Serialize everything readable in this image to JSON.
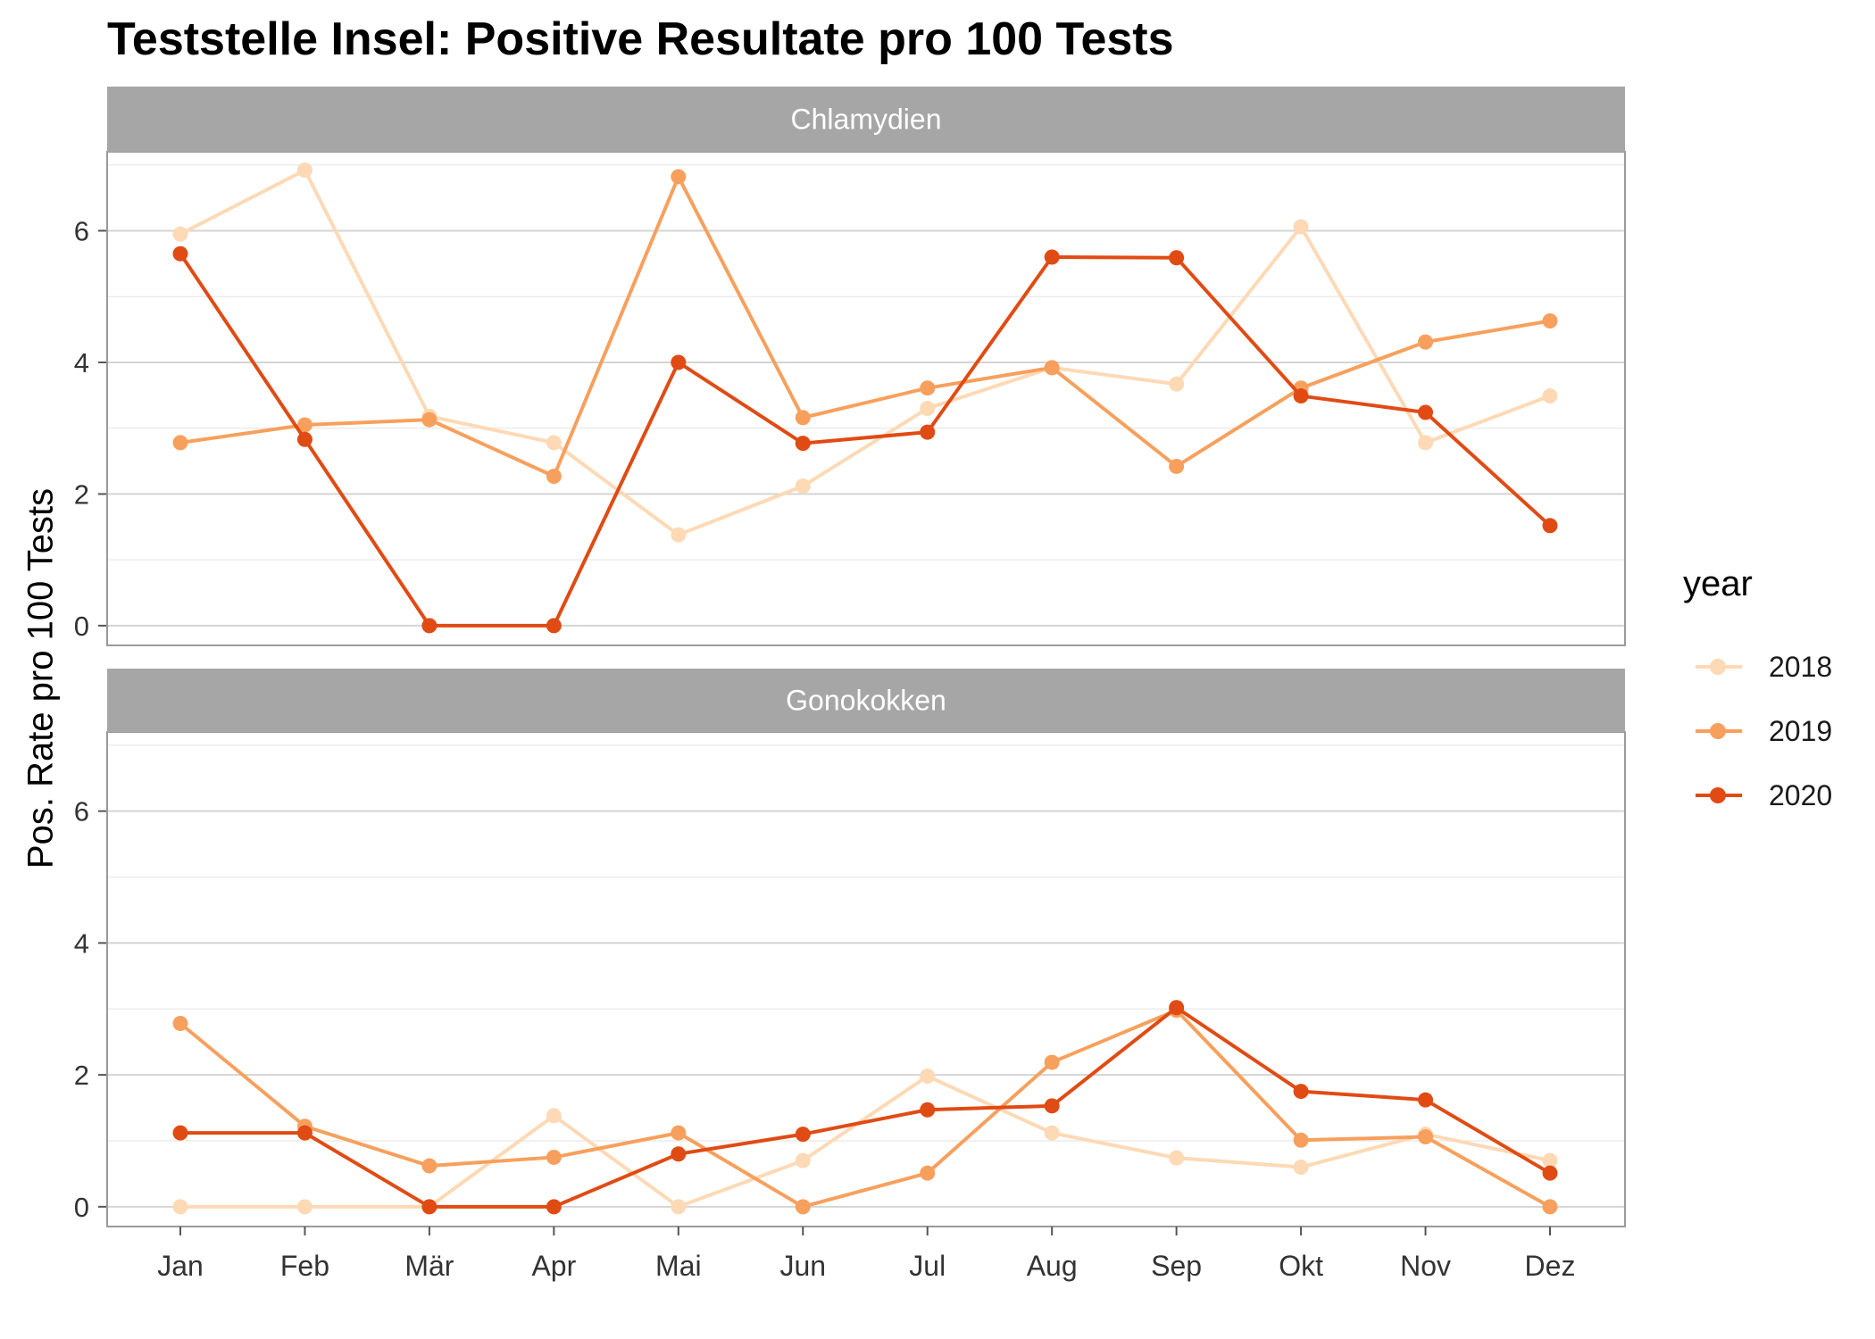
{
  "chart_data": {
    "type": "line",
    "title": "Teststelle Insel: Positive Resultate pro 100 Tests",
    "ylabel": "Pos. Rate pro 100 Tests",
    "xlabel": "",
    "categories": [
      "Jan",
      "Feb",
      "Mär",
      "Apr",
      "Mai",
      "Jun",
      "Jul",
      "Aug",
      "Sep",
      "Okt",
      "Nov",
      "Dez"
    ],
    "ylim": [
      -0.3,
      7.2
    ],
    "yticks": [
      0,
      2,
      4,
      6
    ],
    "grid": true,
    "legend": {
      "title": "year",
      "position": "right"
    },
    "series_styles": [
      {
        "name": "2018",
        "color": "#fdd9b5"
      },
      {
        "name": "2019",
        "color": "#f7a05d"
      },
      {
        "name": "2020",
        "color": "#e04b14"
      }
    ],
    "panels": [
      {
        "label": "Chlamydien",
        "series": [
          {
            "name": "2018",
            "values": [
              5.95,
              6.92,
              3.18,
              2.78,
              1.38,
              2.12,
              3.3,
              3.92,
              3.67,
              6.06,
              2.78,
              3.49
            ]
          },
          {
            "name": "2019",
            "values": [
              2.78,
              3.05,
              3.13,
              2.27,
              6.82,
              3.16,
              3.61,
              3.92,
              2.42,
              3.61,
              4.31,
              4.63
            ]
          },
          {
            "name": "2020",
            "values": [
              5.65,
              2.83,
              0,
              0,
              4.0,
              2.77,
              2.94,
              5.6,
              5.59,
              3.49,
              3.24,
              1.52
            ]
          }
        ]
      },
      {
        "label": "Gonokokken",
        "series": [
          {
            "name": "2018",
            "values": [
              0,
              0,
              0,
              1.38,
              0,
              0.7,
              1.98,
              1.12,
              0.74,
              0.6,
              1.1,
              0.7
            ]
          },
          {
            "name": "2019",
            "values": [
              2.78,
              1.22,
              0.62,
              0.75,
              1.12,
              0,
              0.51,
              2.19,
              2.98,
              1.01,
              1.06,
              0
            ]
          },
          {
            "name": "2020",
            "values": [
              1.12,
              1.12,
              0,
              0,
              0.8,
              1.1,
              1.47,
              1.53,
              3.02,
              1.75,
              1.62,
              0.51
            ]
          }
        ]
      }
    ]
  }
}
